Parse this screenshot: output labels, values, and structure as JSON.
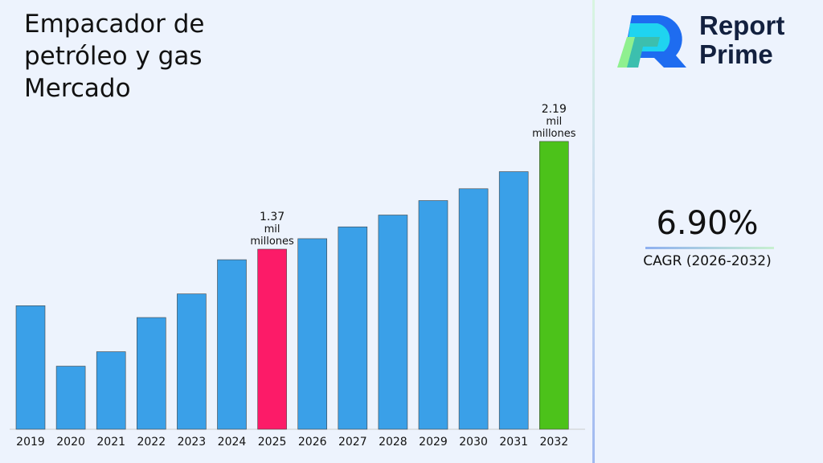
{
  "title": "Empacador de petróleo y gas Mercado",
  "logo": {
    "line1": "Report",
    "line2": "Prime"
  },
  "cagr": {
    "value": "6.90%",
    "label": "CAGR (2026-2032)"
  },
  "chart_data": {
    "type": "bar",
    "categories": [
      "2019",
      "2020",
      "2021",
      "2022",
      "2023",
      "2024",
      "2025",
      "2026",
      "2027",
      "2028",
      "2029",
      "2030",
      "2031",
      "2032"
    ],
    "values": [
      0.94,
      0.48,
      0.59,
      0.85,
      1.03,
      1.29,
      1.37,
      1.45,
      1.54,
      1.63,
      1.74,
      1.83,
      1.96,
      2.19
    ],
    "unit": "mil millones",
    "colors": {
      "default": "#3aa0e8",
      "2025": "#fc1b68",
      "2032": "#4cc21a"
    },
    "annotations": [
      {
        "category": "2025",
        "lines": [
          "1.37",
          "mil",
          "millones"
        ]
      },
      {
        "category": "2032",
        "lines": [
          "2.19",
          "mil",
          "millones"
        ]
      }
    ],
    "ylim": [
      0,
      2.3
    ],
    "grid": false,
    "title": "",
    "xlabel": "",
    "ylabel": ""
  }
}
